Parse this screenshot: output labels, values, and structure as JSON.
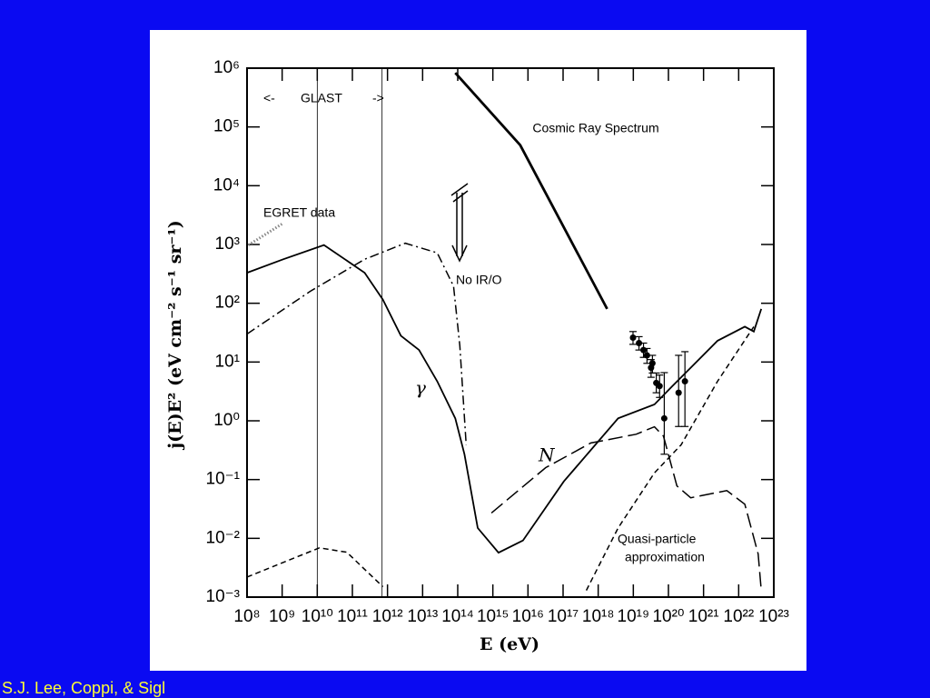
{
  "chart_data": {
    "type": "line",
    "xlabel": "E (eV)",
    "ylabel": "j(E)E² (eV cm⁻² s⁻¹ sr⁻¹)",
    "xscale": "log",
    "yscale": "log",
    "xlim": [
      100000000.0,
      1e+23
    ],
    "ylim": [
      0.001,
      1000000
    ],
    "xticks": [
      {
        "value": 100000000.0,
        "label": "10⁸"
      },
      {
        "value": 1000000000.0,
        "label": "10⁹"
      },
      {
        "value": 10000000000.0,
        "label": "10¹⁰"
      },
      {
        "value": 100000000000.0,
        "label": "10¹¹"
      },
      {
        "value": 1000000000000.0,
        "label": "10¹²"
      },
      {
        "value": 10000000000000.0,
        "label": "10¹³"
      },
      {
        "value": 100000000000000.0,
        "label": "10¹⁴"
      },
      {
        "value": 1000000000000000.0,
        "label": "10¹⁵"
      },
      {
        "value": 1e+16,
        "label": "10¹⁶"
      },
      {
        "value": 1e+17,
        "label": "10¹⁷"
      },
      {
        "value": 1e+18,
        "label": "10¹⁸"
      },
      {
        "value": 1e+19,
        "label": "10¹⁹"
      },
      {
        "value": 1e+20,
        "label": "10²⁰"
      },
      {
        "value": 1e+21,
        "label": "10²¹"
      },
      {
        "value": 1e+22,
        "label": "10²²"
      },
      {
        "value": 1e+23,
        "label": "10²³"
      }
    ],
    "yticks": [
      {
        "value": 0.001,
        "label": "10⁻³"
      },
      {
        "value": 0.01,
        "label": "10⁻²"
      },
      {
        "value": 0.1,
        "label": "10⁻¹"
      },
      {
        "value": 1,
        "label": "10⁰"
      },
      {
        "value": 10,
        "label": "10¹"
      },
      {
        "value": 100,
        "label": "10²"
      },
      {
        "value": 1000,
        "label": "10³"
      },
      {
        "value": 10000,
        "label": "10⁴"
      },
      {
        "value": 100000,
        "label": "10⁵"
      },
      {
        "value": 1000000,
        "label": "10⁶"
      }
    ],
    "series": [
      {
        "color": "#000000",
        "style": "solid",
        "x": [
          100000000.0,
          1070000000.0,
          15500000000.0,
          224000000000.0,
          740000000000.0,
          2400000000000.0,
          7900000000000.0,
          26000000000000.0,
          85000000000000.0,
          155000000000000.0,
          370000000000000.0,
          1450000000000000.0,
          7200000000000000.0,
          1.05e+17,
          3.7e+18,
          4e+19,
          1.3e+20,
          2.5e+21,
          1.5e+22,
          2.7e+22,
          4.4e+22
        ],
        "values": [
          330,
          560,
          980,
          330,
          115,
          28,
          16,
          4.7,
          1.1,
          0.27,
          0.015,
          0.0057,
          0.0092,
          0.093,
          1.1,
          1.9,
          3.9,
          23,
          40,
          33,
          80
        ]
      },
      {
        "color": "#000000",
        "style": "dashdot",
        "x": [
          100000000.0,
          6300000000.0,
          224000000000.0,
          3200000000000.0,
          26000000000000.0,
          76000000000000.0,
          115000000000000.0,
          174000000000000.0
        ],
        "values": [
          30,
          160,
          560,
          1050,
          720,
          195,
          19,
          0.39
        ]
      },
      {
        "color": "#000000",
        "style": "dash",
        "x": [
          100000000.0,
          11500000000.0,
          69000000000.0,
          740000000000.0
        ],
        "values": [
          0.0022,
          0.0069,
          0.0058,
          0.0015
        ]
      },
      {
        "color": "#000000",
        "style": "longdash",
        "x": [
          910000000000000.0,
          3.2e+16,
          6.2e+17,
          1.2e+19,
          4e+19,
          7.2e+19,
          1.74e+20,
          4.3e+20,
          4.6e+21,
          1.5e+22,
          3.6e+22,
          4.4e+22
        ],
        "values": [
          0.027,
          0.16,
          0.42,
          0.59,
          0.79,
          0.55,
          0.078,
          0.049,
          0.065,
          0.038,
          0.0054,
          0.0013
        ]
      },
      {
        "color": "#000000",
        "style": "dash",
        "x": [
          4.6e+17,
          3.7e+18,
          4e+19,
          2.3e+20,
          2.5e+21,
          2.7e+22
        ],
        "values": [
          0.0013,
          0.015,
          0.13,
          0.39,
          4.7,
          40
        ]
      },
      {
        "color": "#000000",
        "style": "thick",
        "x": [
          85000000000000.0,
          6000000000000000.0,
          1.8e+18
        ],
        "values": [
          830000,
          49000,
          80
        ]
      },
      {
        "color": "#888888",
        "style": "dotted",
        "x": [
          110000000.0,
          1070000000.0
        ],
        "values": [
          980,
          2300
        ]
      }
    ],
    "points": {
      "color": "#000000",
      "x": [
        9.8e+18,
        1.45e+19,
        1.95e+19,
        2.45e+19,
        3.2e+19,
        3.5e+19,
        4.5e+19,
        5.6e+19,
        7.6e+19,
        1.95e+20,
        2.95e+20
      ],
      "values": [
        26,
        21,
        16,
        13,
        8,
        9.5,
        4.4,
        3.9,
        1.1,
        3.0,
        4.7
      ],
      "low": [
        20,
        16,
        12,
        9.5,
        5.5,
        6.5,
        3,
        2.5,
        0.27,
        0.8,
        0.8
      ],
      "high": [
        33,
        27,
        21,
        17,
        11,
        13,
        6.5,
        6,
        6.6,
        13,
        15
      ]
    },
    "vlines": [
      10000000000.0,
      700000000000.0
    ],
    "annotations": [
      "Cosmic Ray Spectrum",
      "EGRET data",
      "No IR/O",
      "γ",
      "N",
      "Quasi-particle",
      "approximation",
      "<-",
      "GLAST",
      "->"
    ],
    "footer": "S.J. Lee, Coppi, & Sigl"
  }
}
